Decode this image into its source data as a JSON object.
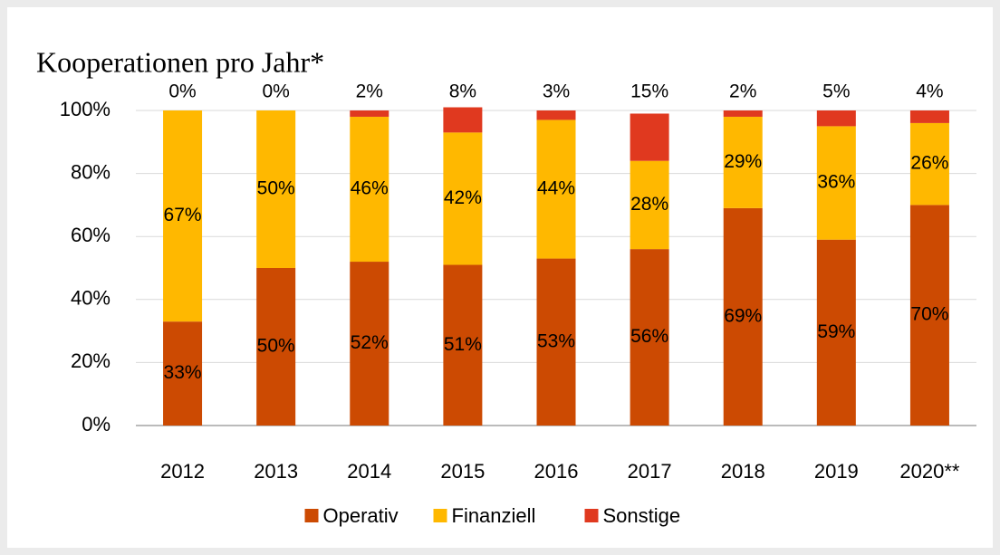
{
  "chart_data": {
    "type": "stacked_bar",
    "title": "Kooperationen pro Jahr*",
    "categories": [
      "2012",
      "2013",
      "2014",
      "2015",
      "2016",
      "2017",
      "2018",
      "2019",
      "2020**"
    ],
    "series": [
      {
        "name": "Operativ",
        "color": "#cc4a02",
        "values": [
          33,
          50,
          52,
          51,
          53,
          56,
          69,
          59,
          70
        ],
        "value_labels": [
          "33%",
          "50%",
          "52%",
          "51%",
          "53%",
          "56%",
          "69%",
          "59%",
          "70%"
        ]
      },
      {
        "name": "Finanziell",
        "color": "#ffb800",
        "values": [
          67,
          50,
          46,
          42,
          44,
          28,
          29,
          36,
          26
        ],
        "value_labels": [
          "67%",
          "50%",
          "46%",
          "42%",
          "44%",
          "28%",
          "29%",
          "36%",
          "26%"
        ]
      },
      {
        "name": "Sonstige",
        "color": "#e0391f",
        "values": [
          0,
          0,
          2,
          8,
          3,
          15,
          2,
          5,
          4
        ],
        "value_labels": [
          "0%",
          "0%",
          "2%",
          "8%",
          "3%",
          "15%",
          "2%",
          "5%",
          "4%"
        ]
      }
    ],
    "ylim": [
      0,
      100
    ],
    "yticks": [
      {
        "value": 0,
        "label": "0%"
      },
      {
        "value": 20,
        "label": "20%"
      },
      {
        "value": 40,
        "label": "40%"
      },
      {
        "value": 60,
        "label": "60%"
      },
      {
        "value": 80,
        "label": "80%"
      },
      {
        "value": 100,
        "label": "100%"
      }
    ],
    "grid": true,
    "legend": "bottom"
  }
}
